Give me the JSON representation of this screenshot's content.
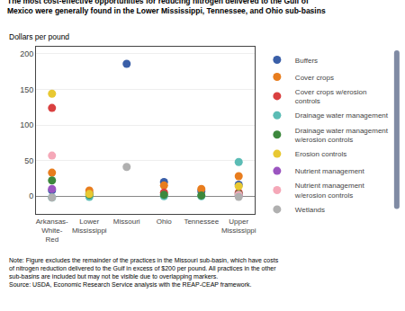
{
  "chart_data": {
    "type": "scatter",
    "title": "The most cost-effective opportunities for reducing nitrogen delivered to the Gulf of\nMexico were generally found in the Lower Mississippi, Tennessee, and Ohio sub-basins",
    "ylabel": "Dollars per pound",
    "categories": [
      "Arkansas-\nWhite-\nRed",
      "Lower\nMississippi",
      "Missouri",
      "Ohio",
      "Tennessee",
      "Upper\nMississippi"
    ],
    "series": [
      {
        "name": "Buffers",
        "color": "#3a5fa8",
        "values": [
          8,
          4,
          186,
          20,
          7,
          16
        ]
      },
      {
        "name": "Cover crops",
        "color": "#e87d1e",
        "values": [
          33,
          8,
          null,
          15,
          10,
          28
        ]
      },
      {
        "name": "Cover crops w/erosion\ncontrols",
        "color": "#d94040",
        "values": [
          124,
          null,
          null,
          5,
          null,
          5
        ]
      },
      {
        "name": "Drainage water management",
        "color": "#5bbcb5",
        "values": [
          -2,
          -1,
          null,
          0,
          0,
          48
        ]
      },
      {
        "name": "Drainage water management\nw/erosion controls",
        "color": "#3d883d",
        "values": [
          22,
          2,
          null,
          2,
          1,
          3
        ]
      },
      {
        "name": "Erosion controls",
        "color": "#e8c832",
        "values": [
          144,
          3,
          null,
          null,
          null,
          14
        ]
      },
      {
        "name": "Nutrient management",
        "color": "#9b55c0",
        "values": [
          10,
          null,
          null,
          null,
          null,
          1
        ]
      },
      {
        "name": "Nutrient management\nw/erosion controls",
        "color": "#f5a8b8",
        "values": [
          57,
          null,
          null,
          null,
          null,
          2
        ]
      },
      {
        "name": "Wetlands",
        "color": "#b0b0b0",
        "values": [
          -2,
          null,
          41,
          null,
          null,
          -1
        ]
      }
    ],
    "ylim": [
      -25,
      210
    ],
    "yticks": [
      0,
      50,
      100,
      150,
      200
    ],
    "grid": true,
    "legend": "right",
    "marker": "circle",
    "annotations": [
      "Note: Figure excludes the remainder of the practices in the Missouri sub-basin, which have costs",
      "of nitrogen reduction delivered to the Gulf in excess of $200 per pound. All practices in the other",
      "sub-basins are included but may not be visible due to overlapping markers.",
      "Source: USDA, Economic Research Service analysis with the REAP-CEAP framework."
    ]
  }
}
